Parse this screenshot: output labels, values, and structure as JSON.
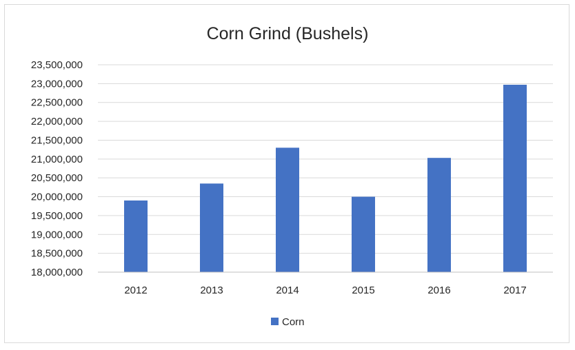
{
  "chart_data": {
    "type": "bar",
    "title": "Corn Grind (Bushels)",
    "xlabel": "",
    "ylabel": "",
    "categories": [
      "2012",
      "2013",
      "2014",
      "2015",
      "2016",
      "2017"
    ],
    "series": [
      {
        "name": "Corn",
        "color": "#4472c4",
        "values": [
          19900000,
          20350000,
          21300000,
          20000000,
          21030000,
          22970000
        ]
      }
    ],
    "ylim": [
      18000000,
      23500000
    ],
    "ytick_step": 500000,
    "ytick_labels": [
      "18,000,000",
      "18,500,000",
      "19,000,000",
      "19,500,000",
      "20,000,000",
      "20,500,000",
      "21,000,000",
      "21,500,000",
      "22,000,000",
      "22,500,000",
      "23,000,000",
      "23,500,000"
    ],
    "grid": true,
    "legend": "bottom"
  }
}
